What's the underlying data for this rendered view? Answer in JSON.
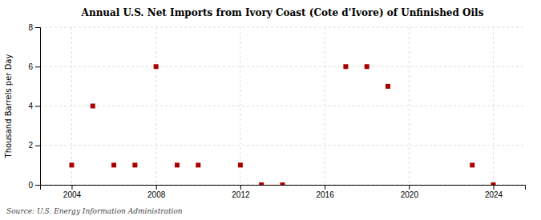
{
  "chart_data": {
    "type": "scatter",
    "title": "Annual U.S. Net Imports from Ivory Coast (Cote d'Ivore) of Unfinished Oils",
    "ylabel": "Thousand Barrels per Day",
    "annotation": "Source: U.S. Energy Information Administration",
    "x": [
      2004,
      2005,
      2006,
      2007,
      2008,
      2009,
      2010,
      2012,
      2013,
      2014,
      2017,
      2018,
      2019,
      2023,
      2024
    ],
    "values": [
      1,
      4,
      1,
      1,
      6,
      1,
      1,
      1,
      0,
      0,
      6,
      6,
      5,
      1,
      0
    ],
    "color": "#aa0000",
    "marker": "square",
    "xlim": [
      2002.5,
      2025.5
    ],
    "ylim": [
      0,
      8
    ],
    "xticks": [
      2004,
      2008,
      2012,
      2016,
      2020,
      2024
    ],
    "yticks": [
      0,
      2,
      4,
      6,
      8
    ],
    "grid": true
  }
}
